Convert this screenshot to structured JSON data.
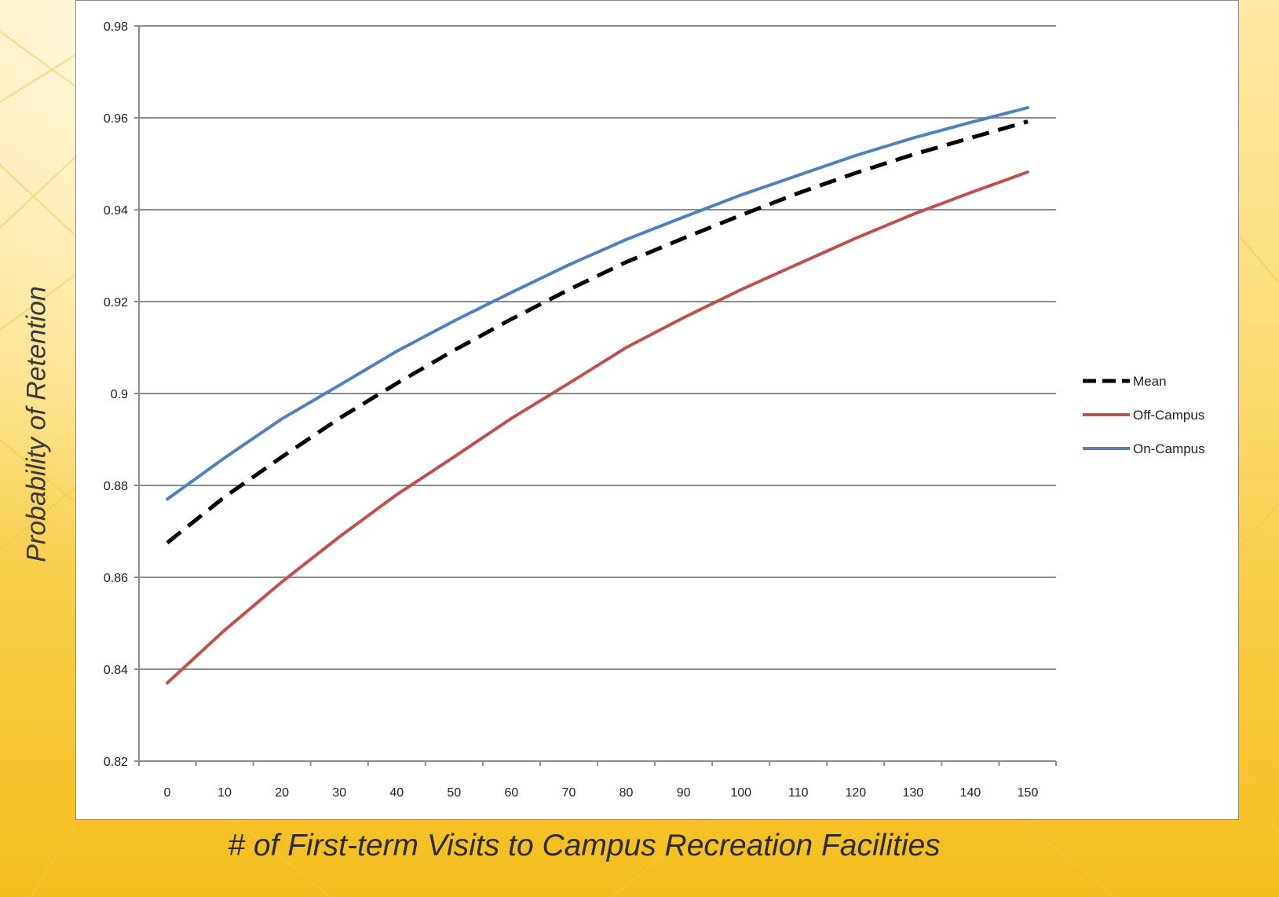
{
  "chart_data": {
    "type": "line",
    "title": "",
    "xlabel": "# of First-term Visits to Campus Recreation Facilities",
    "ylabel": "Probability of Retention",
    "xlim": [
      0,
      150
    ],
    "ylim": [
      0.82,
      0.98
    ],
    "x_ticks": [
      "0",
      "10",
      "20",
      "30",
      "40",
      "50",
      "60",
      "70",
      "80",
      "90",
      "100",
      "110",
      "120",
      "130",
      "140",
      "150"
    ],
    "y_ticks": [
      "0.82",
      "0.84",
      "0.86",
      "0.88",
      "0.9",
      "0.92",
      "0.94",
      "0.96",
      "0.98"
    ],
    "grid": "horizontal",
    "legend_position": "right",
    "x": [
      0,
      10,
      20,
      30,
      40,
      50,
      60,
      70,
      80,
      90,
      100,
      110,
      120,
      130,
      140,
      150
    ],
    "series": [
      {
        "name": "Mean",
        "style": "dashed",
        "color": "#000000",
        "values": [
          0.8675,
          0.8775,
          0.8862,
          0.8946,
          0.9022,
          0.9094,
          0.9162,
          0.9226,
          0.9286,
          0.9338,
          0.9388,
          0.9436,
          0.948,
          0.952,
          0.9556,
          0.9592
        ]
      },
      {
        "name": "Off-Campus",
        "style": "solid",
        "color": "#c0504d",
        "values": [
          0.837,
          0.8485,
          0.859,
          0.8688,
          0.878,
          0.8862,
          0.8946,
          0.9022,
          0.91,
          0.9165,
          0.9226,
          0.9282,
          0.9338,
          0.939,
          0.9437,
          0.9482
        ]
      },
      {
        "name": "On-Campus",
        "style": "solid",
        "color": "#4f81bd",
        "values": [
          0.877,
          0.886,
          0.8945,
          0.9018,
          0.9092,
          0.9158,
          0.922,
          0.928,
          0.9335,
          0.9384,
          0.9432,
          0.9475,
          0.9518,
          0.9556,
          0.959,
          0.9622
        ]
      }
    ]
  }
}
